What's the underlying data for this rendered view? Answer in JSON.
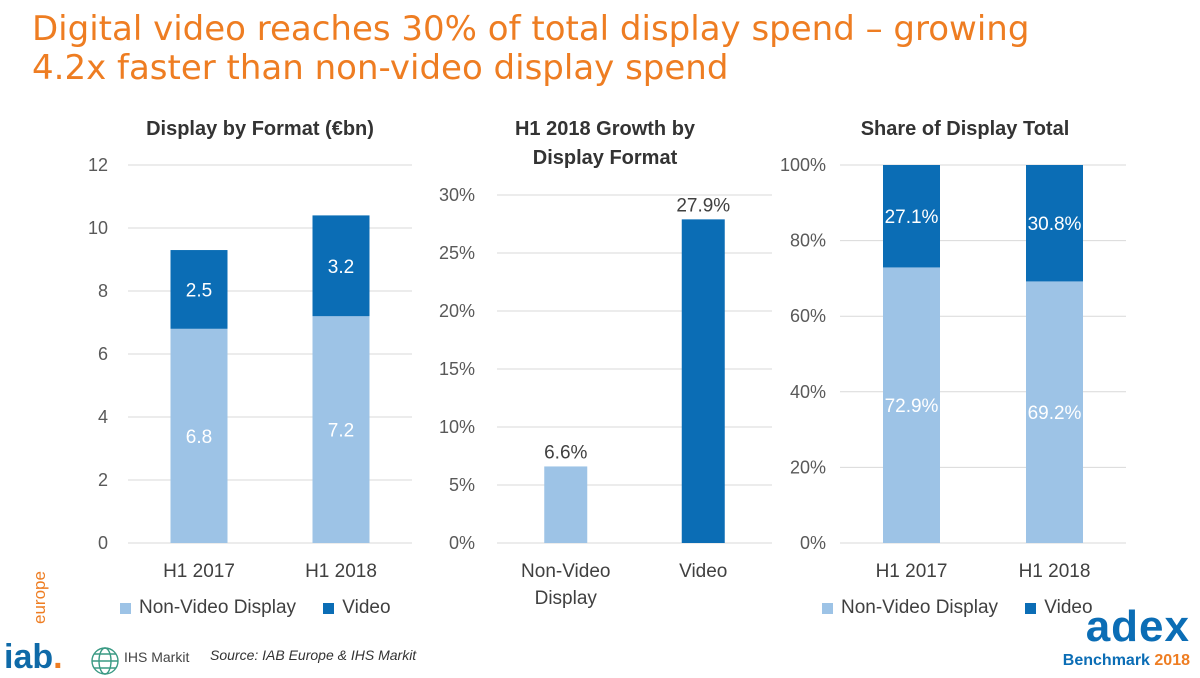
{
  "headline": {
    "line1": "Digital video reaches 30% of total display spend – growing",
    "line2": "4.2x faster than non-video display spend"
  },
  "colors": {
    "non_video": "#9dc3e6",
    "video": "#0b6db5",
    "headline": "#ee7d22",
    "grid": "#d9d9d9"
  },
  "chart_data": [
    {
      "type": "bar",
      "stacked": true,
      "title": "Display by Format (€bn)",
      "categories": [
        "H1 2017",
        "H1 2018"
      ],
      "series": [
        {
          "name": "Non-Video Display",
          "values": [
            6.8,
            7.2
          ],
          "labels": [
            "6.8",
            "7.2"
          ]
        },
        {
          "name": "Video",
          "values": [
            2.5,
            3.2
          ],
          "labels": [
            "2.5",
            "3.2"
          ]
        }
      ],
      "ylim": [
        0,
        12
      ],
      "yticks": [
        "0",
        "2",
        "4",
        "6",
        "8",
        "10",
        "12"
      ],
      "grid": true,
      "legend_placement": "bottom"
    },
    {
      "type": "bar",
      "title_lines": [
        "H1 2018 Growth by",
        "Display Format"
      ],
      "categories": [
        [
          "Non-Video",
          "Display"
        ],
        [
          "Video"
        ]
      ],
      "values": [
        6.6,
        27.9
      ],
      "labels": [
        "6.6%",
        "27.9%"
      ],
      "ylim": [
        0,
        30
      ],
      "yticks": [
        "0%",
        "5%",
        "10%",
        "15%",
        "20%",
        "25%",
        "30%"
      ],
      "grid": true
    },
    {
      "type": "bar",
      "stacked": true,
      "title": "Share of Display Total",
      "categories": [
        "H1 2017",
        "H1 2018"
      ],
      "series": [
        {
          "name": "Non-Video Display",
          "values": [
            72.9,
            69.2
          ],
          "labels": [
            "72.9%",
            "69.2%"
          ]
        },
        {
          "name": "Video",
          "values": [
            27.1,
            30.8
          ],
          "labels": [
            "27.1%",
            "30.8%"
          ]
        }
      ],
      "ylim": [
        0,
        100
      ],
      "yticks": [
        "0%",
        "20%",
        "40%",
        "60%",
        "80%",
        "100%"
      ],
      "grid": true,
      "legend_placement": "bottom"
    }
  ],
  "footer": {
    "iab_text": "iab",
    "iab_dot": ".",
    "iab_sub": "europe",
    "ihs_text": "IHS Markit",
    "source": "Source: IAB Europe & IHS Markit",
    "adex_word": "adex",
    "adex_sub": "Benchmark",
    "adex_year": "2018"
  }
}
